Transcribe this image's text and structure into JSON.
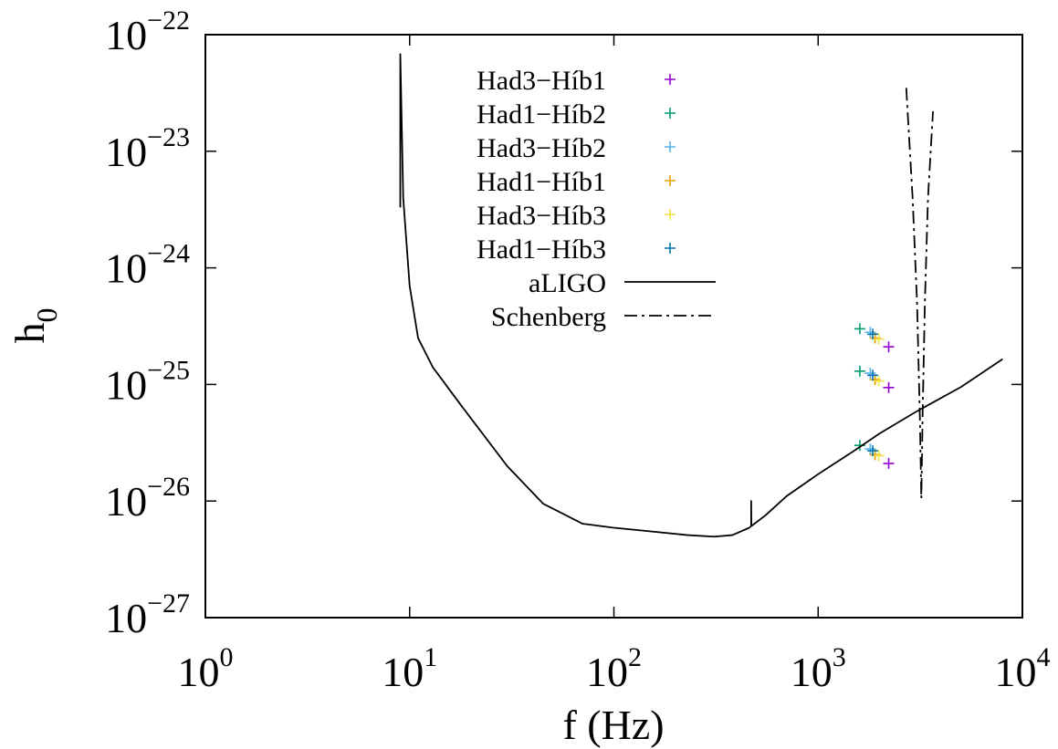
{
  "chart_data": {
    "type": "scatter",
    "xlabel": "f (Hz)",
    "ylabel": "h",
    "ylabel_sub": "0",
    "x_scale": "log",
    "y_scale": "log",
    "xlim": [
      1,
      10000
    ],
    "ylim": [
      1e-27,
      1e-22
    ],
    "x_ticks": [
      {
        "value": 1,
        "base": "10",
        "exp": "0"
      },
      {
        "value": 10,
        "base": "10",
        "exp": "1"
      },
      {
        "value": 100,
        "base": "10",
        "exp": "2"
      },
      {
        "value": 1000,
        "base": "10",
        "exp": "3"
      },
      {
        "value": 10000,
        "base": "10",
        "exp": "4"
      }
    ],
    "y_ticks": [
      {
        "value": 1e-22,
        "base": "10",
        "exp": "−22"
      },
      {
        "value": 1e-23,
        "base": "10",
        "exp": "−23"
      },
      {
        "value": 1e-24,
        "base": "10",
        "exp": "−24"
      },
      {
        "value": 1e-25,
        "base": "10",
        "exp": "−25"
      },
      {
        "value": 1e-26,
        "base": "10",
        "exp": "−26"
      },
      {
        "value": 1e-27,
        "base": "10",
        "exp": "−27"
      }
    ],
    "grid": false,
    "legend_position": "top-center",
    "series": [
      {
        "name": "Had3−Híb1",
        "kind": "points",
        "color": "#9400d3",
        "points": [
          [
            2215,
            2.1e-25
          ],
          [
            2215,
            9.4e-26
          ],
          [
            2215,
            2.1e-26
          ]
        ]
      },
      {
        "name": "Had1−Híb2",
        "kind": "points",
        "color": "#009e73",
        "points": [
          [
            1600,
            3e-25
          ],
          [
            1600,
            1.3e-25
          ],
          [
            1600,
            3e-26
          ]
        ]
      },
      {
        "name": "Had3−Híb2",
        "kind": "points",
        "color": "#56b4e9",
        "points": [
          [
            1800,
            2.8e-25
          ],
          [
            1800,
            1.25e-25
          ],
          [
            1800,
            2.8e-26
          ]
        ]
      },
      {
        "name": "Had1−Híb1",
        "kind": "points",
        "color": "#e69f00",
        "points": [
          [
            1900,
            2.5e-25
          ],
          [
            1900,
            1.1e-25
          ],
          [
            1900,
            2.5e-26
          ]
        ]
      },
      {
        "name": "Had3−Híb3",
        "kind": "points",
        "color": "#f0e442",
        "points": [
          [
            1980,
            2.45e-25
          ],
          [
            1980,
            1.07e-25
          ],
          [
            1980,
            2.45e-26
          ]
        ]
      },
      {
        "name": "Had1−Híb3",
        "kind": "points",
        "color": "#0072b2",
        "points": [
          [
            1850,
            2.7e-25
          ],
          [
            1850,
            1.2e-25
          ],
          [
            1850,
            2.7e-26
          ]
        ]
      },
      {
        "name": "aLIGO",
        "kind": "line",
        "color": "#000000",
        "dash": "solid",
        "points": [
          [
            9,
            3.3e-24
          ],
          [
            9,
            6.8e-23
          ],
          [
            9.3,
            4e-24
          ],
          [
            10,
            7e-25
          ],
          [
            11,
            2.5e-25
          ],
          [
            13,
            1.4e-25
          ],
          [
            18,
            6.5e-26
          ],
          [
            30,
            2e-26
          ],
          [
            45,
            9.5e-27
          ],
          [
            70,
            6.4e-27
          ],
          [
            100,
            5.9e-27
          ],
          [
            150,
            5.5e-27
          ],
          [
            230,
            5.1e-27
          ],
          [
            310,
            4.95e-27
          ],
          [
            380,
            5.1e-27
          ],
          [
            460,
            5.9e-27
          ],
          [
            470,
            6.1e-27
          ],
          [
            470,
            1e-26
          ],
          [
            471,
            6.1e-27
          ],
          [
            550,
            7.5e-27
          ],
          [
            700,
            1.1e-26
          ],
          [
            1000,
            1.7e-26
          ],
          [
            1500,
            2.7e-26
          ],
          [
            2000,
            3.8e-26
          ],
          [
            3000,
            5.8e-26
          ],
          [
            5000,
            9.5e-26
          ],
          [
            8000,
            1.65e-25
          ]
        ]
      },
      {
        "name": "Schenberg",
        "kind": "line",
        "color": "#000000",
        "dash": "dash-dot",
        "points": [
          [
            2700,
            3.5e-23
          ],
          [
            2900,
            4e-24
          ],
          [
            3050,
            5e-25
          ],
          [
            3150,
            5e-26
          ],
          [
            3200,
            1.05e-26
          ],
          [
            3250,
            6e-26
          ],
          [
            3330,
            5e-25
          ],
          [
            3450,
            4e-24
          ],
          [
            3650,
            2.2e-23
          ]
        ]
      }
    ]
  }
}
